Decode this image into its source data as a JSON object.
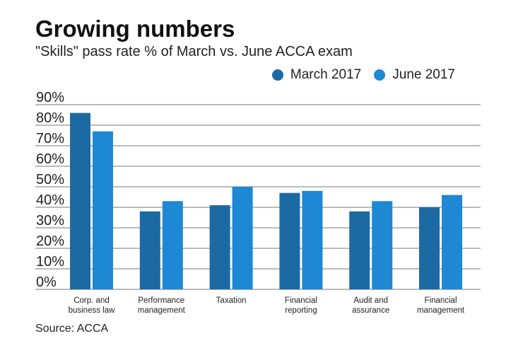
{
  "chart_data": {
    "type": "bar",
    "title": "Growing numbers",
    "subtitle": "\"Skills\" pass rate % of March vs. June ACCA exam",
    "categories": [
      [
        "Corp. and",
        "business law"
      ],
      [
        "Performance",
        "management"
      ],
      [
        "Taxation"
      ],
      [
        "Financial",
        "reporting"
      ],
      [
        "Audit and",
        "assurance"
      ],
      [
        "Financial",
        "management"
      ]
    ],
    "series": [
      {
        "name": "March 2017",
        "color": "#1c6aa3",
        "values": [
          86,
          38,
          41,
          47,
          38,
          40
        ]
      },
      {
        "name": "June 2017",
        "color": "#1e88d4",
        "values": [
          77,
          43,
          50,
          48,
          43,
          46
        ]
      }
    ],
    "yticks": [
      "0%",
      "10%",
      "20%",
      "30%",
      "40%",
      "50%",
      "60%",
      "70%",
      "80%",
      "90%"
    ],
    "ylim": [
      0,
      90
    ],
    "grid": true,
    "legend": "top-right",
    "source": "Source: ACCA"
  }
}
